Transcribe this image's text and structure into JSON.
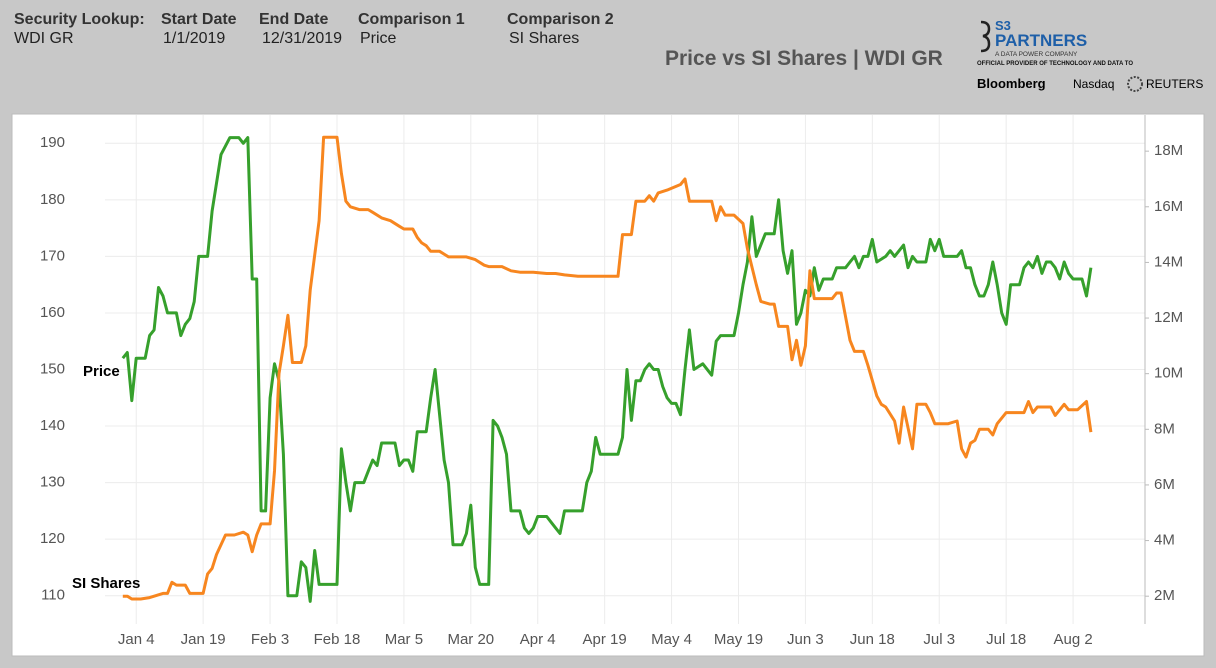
{
  "header": {
    "fields": [
      {
        "label": "Security Lookup:",
        "value": "WDI GR"
      },
      {
        "label": "Start Date",
        "value": "1/1/2019"
      },
      {
        "label": "End Date",
        "value": "12/31/2019"
      },
      {
        "label": "Comparison 1",
        "value": "Price"
      },
      {
        "label": "Comparison 2",
        "value": "SI Shares"
      }
    ]
  },
  "logo": {
    "mark": "S3",
    "name": "PARTNERS",
    "tagline": "A DATA POWER COMPANY",
    "note": "OFFICIAL PROVIDER OF TECHNOLOGY AND DATA TO",
    "partners": [
      "Bloomberg",
      "Nasdaq",
      "REUTERS"
    ]
  },
  "chart_data": {
    "type": "line",
    "title": "Price vs SI Shares | WDI GR",
    "xlim": [
      -3,
      229
    ],
    "xticks": [
      {
        "value": 4,
        "label": "Jan 4"
      },
      {
        "value": 19,
        "label": "Jan 19"
      },
      {
        "value": 34,
        "label": "Feb 3"
      },
      {
        "value": 49,
        "label": "Feb 18"
      },
      {
        "value": 64,
        "label": "Mar 5"
      },
      {
        "value": 79,
        "label": "Mar 20"
      },
      {
        "value": 94,
        "label": "Apr 4"
      },
      {
        "value": 109,
        "label": "Apr 19"
      },
      {
        "value": 124,
        "label": "May 4"
      },
      {
        "value": 139,
        "label": "May 19"
      },
      {
        "value": 154,
        "label": "Jun 3"
      },
      {
        "value": 169,
        "label": "Jun 18"
      },
      {
        "value": 184,
        "label": "Jul 3"
      },
      {
        "value": 199,
        "label": "Jul 18"
      },
      {
        "value": 214,
        "label": "Aug 2"
      }
    ],
    "ylim": [
      105,
      195
    ],
    "yticks": [
      110,
      120,
      130,
      140,
      150,
      160,
      170,
      180,
      190
    ],
    "y2lim": [
      1000000,
      19300000
    ],
    "y2ticks": [
      {
        "value": 2000000,
        "label": "2M"
      },
      {
        "value": 4000000,
        "label": "4M"
      },
      {
        "value": 6000000,
        "label": "6M"
      },
      {
        "value": 8000000,
        "label": "8M"
      },
      {
        "value": 10000000,
        "label": "10M"
      },
      {
        "value": 12000000,
        "label": "12M"
      },
      {
        "value": 14000000,
        "label": "14M"
      },
      {
        "value": 16000000,
        "label": "16M"
      },
      {
        "value": 18000000,
        "label": "18M"
      }
    ],
    "grid": true,
    "series": [
      {
        "name": "Price",
        "color": "#36a02c",
        "x": [
          1,
          2,
          3,
          4,
          6,
          7,
          8,
          9,
          10,
          11,
          13,
          14,
          15,
          16,
          17,
          18,
          20,
          21,
          23,
          25,
          27,
          28,
          29,
          30,
          31,
          32,
          33,
          34,
          35,
          36,
          37,
          38,
          40,
          41,
          42,
          43,
          44,
          45,
          48,
          49,
          50,
          51,
          52,
          53,
          55,
          56,
          57,
          58,
          59,
          62,
          63,
          64,
          65,
          66,
          67,
          69,
          70,
          71,
          72,
          73,
          74,
          75,
          77,
          78,
          79,
          80,
          81,
          83,
          84,
          85,
          86,
          87,
          88,
          90,
          91,
          92,
          93,
          94,
          96,
          97,
          98,
          99,
          100,
          104,
          105,
          106,
          107,
          108,
          112,
          113,
          114,
          115,
          116,
          117,
          118,
          119,
          120,
          121,
          122,
          123,
          124,
          125,
          126,
          127,
          128,
          129,
          131,
          133,
          134,
          135,
          136,
          138,
          139,
          140,
          141,
          142,
          143,
          144,
          145,
          147,
          148,
          149,
          150,
          151,
          152,
          153,
          154,
          155,
          156,
          157,
          158,
          160,
          161,
          163,
          164,
          165,
          166,
          167,
          168,
          169,
          170,
          172,
          173,
          174,
          176,
          177,
          178,
          179,
          181,
          182,
          183,
          184,
          185,
          187,
          188,
          189,
          190,
          191,
          192,
          193,
          194,
          195,
          196,
          197,
          198,
          199,
          200,
          202,
          203,
          204,
          205,
          206,
          207,
          208,
          209,
          210,
          211,
          212,
          213,
          214,
          215,
          216,
          217,
          218
        ],
        "values": [
          152,
          153,
          144.5,
          152,
          152,
          156,
          157,
          164.5,
          163,
          160,
          160,
          156,
          158,
          159,
          162,
          170,
          170,
          178,
          188,
          191,
          191,
          190,
          191,
          166,
          166,
          125,
          125,
          145,
          151,
          148,
          135,
          110,
          110,
          116,
          115,
          109,
          118,
          112,
          112,
          112,
          136,
          130,
          125,
          130,
          130,
          132,
          134,
          133,
          137,
          137,
          133,
          134,
          134,
          132,
          139,
          139,
          145,
          150,
          142,
          134,
          130,
          119,
          119,
          121,
          126,
          115,
          112,
          112,
          141,
          140,
          138,
          135,
          125,
          125,
          122,
          121,
          122,
          124,
          124,
          123,
          122,
          121,
          125,
          125,
          130,
          132,
          138,
          135,
          135,
          138,
          150,
          141,
          148,
          148,
          150,
          151,
          150,
          150,
          147,
          145,
          144,
          144,
          142,
          150,
          157,
          150,
          151,
          149,
          155,
          156,
          156,
          156,
          160,
          165,
          169,
          177,
          170,
          172,
          174,
          174,
          180,
          171,
          167,
          171,
          158,
          160,
          164,
          163,
          168,
          164,
          166,
          166,
          168,
          168,
          169,
          170,
          168,
          170,
          170,
          173,
          169,
          170,
          171,
          170,
          172,
          168,
          170,
          169,
          169,
          173,
          171,
          173,
          170,
          170,
          170,
          171,
          168,
          168,
          165,
          163,
          163,
          165,
          169,
          165,
          160,
          158,
          165,
          165,
          168,
          169,
          168,
          170,
          167,
          169,
          169,
          168,
          166,
          169,
          167,
          166,
          166,
          166,
          163,
          168
        ]
      },
      {
        "name": "SI Shares",
        "color": "#f7861f",
        "axis": "y2",
        "x": [
          1,
          2,
          3,
          5,
          7,
          8,
          10,
          11,
          12,
          13,
          15,
          16,
          19,
          20,
          21,
          22,
          24,
          26,
          28,
          29,
          30,
          31,
          32,
          34,
          35,
          36,
          37,
          38,
          39,
          41,
          42,
          43,
          45,
          46,
          48,
          49,
          50,
          51,
          52,
          54,
          56,
          57,
          59,
          61,
          63,
          64,
          66,
          67,
          68,
          69,
          70,
          72,
          73,
          74,
          76,
          78,
          80,
          82,
          83,
          86,
          88,
          90,
          93,
          96,
          98,
          100,
          103,
          112,
          113,
          115,
          116,
          118,
          119,
          120,
          121,
          123,
          126,
          127,
          128,
          133,
          134,
          135,
          136,
          138,
          140,
          141,
          143,
          144,
          146,
          147,
          148,
          150,
          151,
          152,
          153,
          154,
          155,
          156,
          160,
          161,
          162,
          164,
          165,
          167,
          168,
          170,
          171,
          172,
          174,
          175,
          176,
          178,
          179,
          181,
          182,
          183,
          186,
          188,
          189,
          190,
          191,
          192,
          193,
          195,
          196,
          197,
          199,
          201,
          203,
          204,
          205,
          206,
          209,
          210,
          212,
          213,
          215,
          217,
          218
        ],
        "values": [
          2000000,
          2000000,
          1900000,
          1900000,
          1950000,
          2000000,
          2100000,
          2100000,
          2500000,
          2400000,
          2400000,
          2100000,
          2100000,
          2800000,
          3000000,
          3500000,
          4200000,
          4200000,
          4300000,
          4200000,
          3600000,
          4200000,
          4600000,
          4600000,
          6500000,
          10000000,
          11000000,
          12100000,
          10400000,
          10400000,
          11000000,
          13000000,
          15500000,
          18500000,
          18500000,
          18500000,
          17200000,
          16200000,
          16000000,
          15900000,
          15900000,
          15800000,
          15600000,
          15500000,
          15300000,
          15200000,
          15200000,
          14900000,
          14700000,
          14600000,
          14400000,
          14400000,
          14300000,
          14200000,
          14200000,
          14200000,
          14100000,
          13900000,
          13850000,
          13850000,
          13700000,
          13650000,
          13650000,
          13600000,
          13600000,
          13550000,
          13500000,
          13500000,
          15000000,
          15000000,
          16200000,
          16200000,
          16400000,
          16200000,
          16500000,
          16600000,
          16800000,
          17000000,
          16200000,
          16200000,
          15500000,
          16000000,
          15700000,
          15700000,
          15400000,
          14500000,
          13200000,
          12600000,
          12500000,
          12500000,
          11700000,
          11700000,
          10500000,
          11200000,
          10300000,
          11000000,
          13700000,
          12700000,
          12700000,
          12900000,
          12900000,
          11200000,
          10800000,
          10800000,
          10300000,
          9200000,
          8900000,
          8800000,
          8300000,
          7500000,
          8800000,
          7300000,
          8900000,
          8900000,
          8600000,
          8200000,
          8200000,
          8300000,
          7300000,
          7000000,
          7500000,
          7600000,
          8000000,
          8000000,
          7800000,
          8200000,
          8600000,
          8600000,
          8600000,
          9000000,
          8600000,
          8800000,
          8800000,
          8500000,
          8900000,
          8700000,
          8700000,
          9000000,
          7900000
        ]
      }
    ]
  }
}
